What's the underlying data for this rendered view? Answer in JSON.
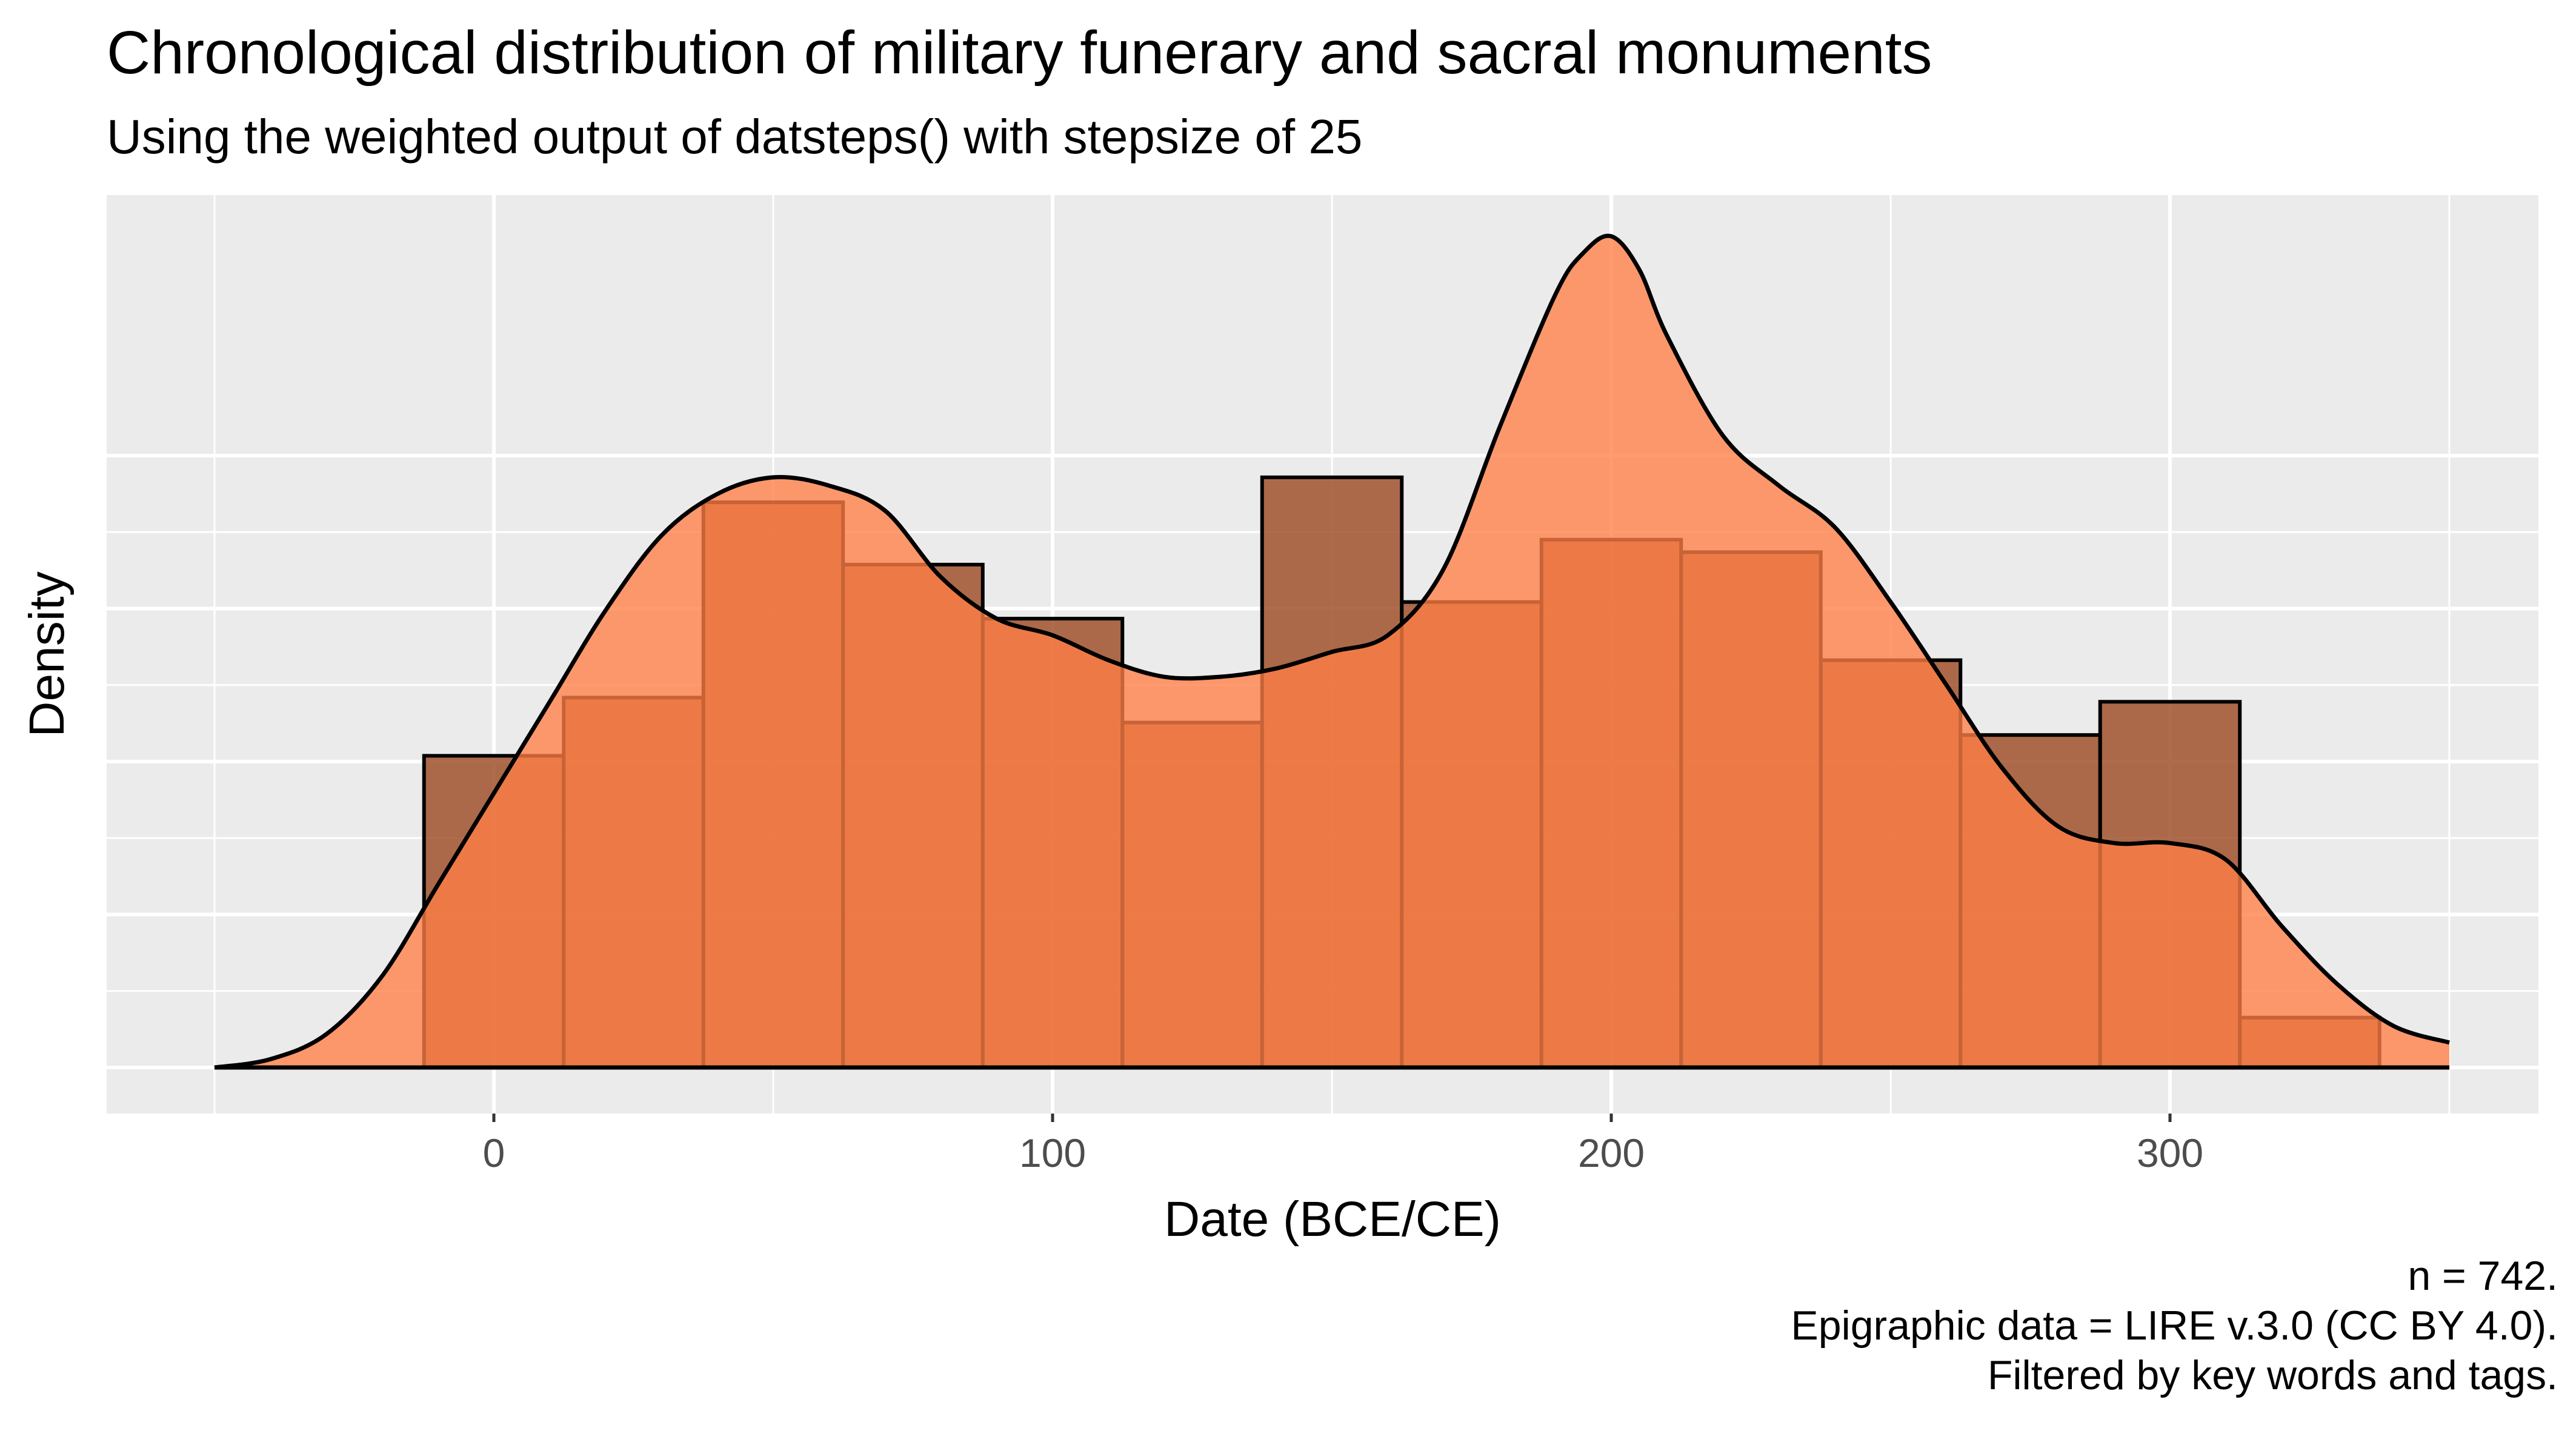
{
  "chart_data": {
    "type": "bar",
    "title": "Chronological distribution of military funerary and sacral monuments",
    "subtitle": "Using the weighted output of datsteps() with stepsize of 25",
    "xlabel": "Date (BCE/CE)",
    "ylabel": "Density",
    "xlim": [
      -50,
      350
    ],
    "x_ticks": [
      0,
      100,
      200,
      300
    ],
    "y_ticks_labeled": false,
    "ylim": [
      0,
      1.0
    ],
    "grid": true,
    "legend": "none",
    "histogram": {
      "bin_width": 25,
      "bin_centers": [
        0,
        25,
        50,
        75,
        100,
        125,
        150,
        175,
        200,
        225,
        250,
        275,
        300,
        325
      ],
      "values": [
        0.375,
        0.445,
        0.68,
        0.605,
        0.54,
        0.415,
        0.71,
        0.56,
        0.635,
        0.62,
        0.49,
        0.4,
        0.44,
        0.06
      ],
      "color": "#a0522d"
    },
    "density_curve": {
      "x": [
        -50,
        -40,
        -30,
        -20,
        -10,
        0,
        10,
        20,
        30,
        40,
        50,
        60,
        70,
        80,
        90,
        100,
        110,
        120,
        130,
        140,
        150,
        160,
        170,
        180,
        190,
        195,
        200,
        205,
        210,
        220,
        230,
        240,
        250,
        260,
        270,
        280,
        290,
        300,
        310,
        320,
        330,
        340,
        350
      ],
      "y": [
        0.0,
        0.01,
        0.04,
        0.11,
        0.22,
        0.33,
        0.44,
        0.55,
        0.64,
        0.69,
        0.71,
        0.7,
        0.67,
        0.59,
        0.54,
        0.52,
        0.49,
        0.47,
        0.47,
        0.48,
        0.5,
        0.52,
        0.6,
        0.77,
        0.93,
        0.98,
        1.0,
        0.96,
        0.88,
        0.76,
        0.7,
        0.65,
        0.56,
        0.46,
        0.36,
        0.29,
        0.27,
        0.27,
        0.25,
        0.17,
        0.1,
        0.05,
        0.03
      ],
      "color": "#ff7f45"
    }
  },
  "caption": {
    "line1": "n = 742.",
    "line2": "Epigraphic data = LIRE v.3.0 (CC BY 4.0).",
    "line3": "Filtered by key words and tags."
  }
}
